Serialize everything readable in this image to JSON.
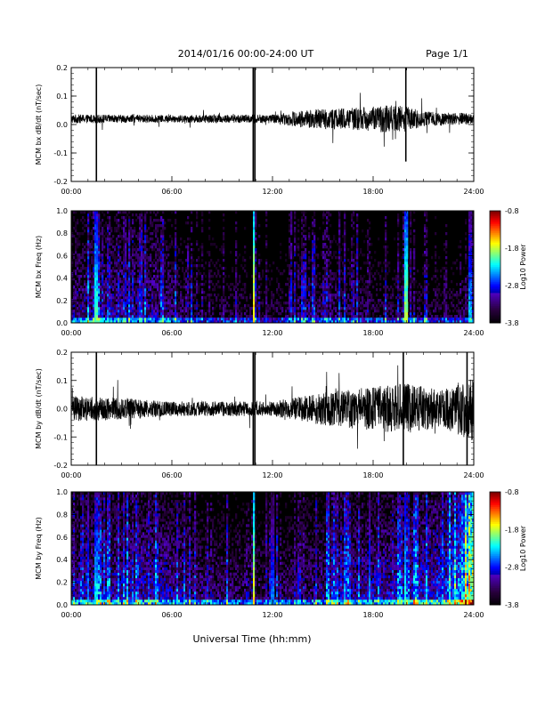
{
  "header": {
    "title": "2014/01/16  00:00-24:00 UT",
    "page_label": "Page 1/1"
  },
  "footer": {
    "xlabel": "Universal Time (hh:mm)"
  },
  "colors": {
    "trace": "#000000",
    "spectrogram_background": "#000000"
  },
  "chart_data": [
    {
      "type": "line",
      "ylabel": "MCM bx dB/dt (nT/sec)",
      "xlim": [
        0,
        24
      ],
      "ylim": [
        -0.2,
        0.2
      ],
      "xticks": [
        "00:00",
        "06:00",
        "12:00",
        "18:00",
        "24:00"
      ],
      "yticks": [
        "-0.2",
        "-0.1",
        "0.0",
        "0.1",
        "0.2"
      ],
      "spikes": [
        {
          "t": 1.5,
          "min": -0.2,
          "max": 0.2
        },
        {
          "t": 10.85,
          "min": -0.2,
          "max": 0.2
        },
        {
          "t": 10.95,
          "min": -0.2,
          "max": 0.2
        },
        {
          "t": 19.95,
          "min": -0.13,
          "max": 0.2
        }
      ],
      "noise_profile": [
        [
          0,
          0.012
        ],
        [
          6,
          0.01
        ],
        [
          12,
          0.012
        ],
        [
          14,
          0.025
        ],
        [
          17,
          0.03
        ],
        [
          19.5,
          0.04
        ],
        [
          21,
          0.02
        ],
        [
          24,
          0.015
        ]
      ],
      "offset": 0.02
    },
    {
      "type": "heatmap",
      "ylabel": "MCM bx Freq (Hz)",
      "xlim": [
        0,
        24
      ],
      "ylim": [
        0,
        1.0
      ],
      "xticks": [
        "00:00",
        "06:00",
        "12:00",
        "18:00",
        "24:00"
      ],
      "yticks": [
        "0.0",
        "0.2",
        "0.4",
        "0.6",
        "0.8",
        "1.0"
      ],
      "colorbar": {
        "label": "Log10 Power",
        "ticks": [
          "-0.8",
          "-1.8",
          "-2.8",
          "-3.8"
        ],
        "range": [
          -3.8,
          -0.8
        ]
      },
      "background_level": [
        [
          0,
          -3.2
        ],
        [
          5,
          -3.1
        ],
        [
          7,
          -3.5
        ],
        [
          12,
          -3.6
        ],
        [
          15,
          -3.4
        ],
        [
          18,
          -3.5
        ],
        [
          22,
          -3.6
        ],
        [
          24,
          -3.5
        ]
      ],
      "bursts": [
        {
          "t": 1.5,
          "level": -2.0
        },
        {
          "t": 10.9,
          "level": -1.5
        },
        {
          "t": 19.95,
          "level": -1.8
        },
        {
          "t": 23.8,
          "level": -2.3
        }
      ]
    },
    {
      "type": "line",
      "ylabel": "MCM by dB/dt (nT/sec)",
      "xlim": [
        0,
        24
      ],
      "ylim": [
        -0.2,
        0.2
      ],
      "xticks": [
        "00:00",
        "06:00",
        "12:00",
        "18:00",
        "24:00"
      ],
      "yticks": [
        "-0.2",
        "-0.1",
        "0.0",
        "0.1",
        "0.2"
      ],
      "spikes": [
        {
          "t": 1.5,
          "min": -0.2,
          "max": 0.2
        },
        {
          "t": 10.85,
          "min": -0.2,
          "max": 0.2
        },
        {
          "t": 10.95,
          "min": -0.2,
          "max": 0.2
        },
        {
          "t": 19.8,
          "min": -0.2,
          "max": 0.2
        },
        {
          "t": 23.6,
          "min": -0.2,
          "max": 0.2
        }
      ],
      "noise_profile": [
        [
          0,
          0.035
        ],
        [
          3,
          0.03
        ],
        [
          6,
          0.02
        ],
        [
          9,
          0.02
        ],
        [
          12,
          0.02
        ],
        [
          15,
          0.045
        ],
        [
          18,
          0.06
        ],
        [
          20,
          0.07
        ],
        [
          22,
          0.05
        ],
        [
          24,
          0.09
        ]
      ],
      "offset": 0.0
    },
    {
      "type": "heatmap",
      "ylabel": "MCM by Freq (Hz)",
      "xlim": [
        0,
        24
      ],
      "ylim": [
        0,
        1.0
      ],
      "xticks": [
        "00:00",
        "06:00",
        "12:00",
        "18:00",
        "24:00"
      ],
      "yticks": [
        "0.0",
        "0.2",
        "0.4",
        "0.6",
        "0.8",
        "1.0"
      ],
      "colorbar": {
        "label": "Log10 Power",
        "ticks": [
          "-0.8",
          "-1.8",
          "-2.8",
          "-3.8"
        ],
        "range": [
          -3.8,
          -0.8
        ]
      },
      "background_level": [
        [
          0,
          -3.1
        ],
        [
          5,
          -3.0
        ],
        [
          8,
          -3.3
        ],
        [
          12,
          -3.4
        ],
        [
          16,
          -3.1
        ],
        [
          20,
          -3.0
        ],
        [
          22.5,
          -2.8
        ],
        [
          24,
          -2.0
        ]
      ],
      "bursts": [
        {
          "t": 1.0,
          "level": -2.4
        },
        {
          "t": 1.5,
          "level": -2.2
        },
        {
          "t": 10.9,
          "level": -1.6
        },
        {
          "t": 12.0,
          "level": -2.5
        },
        {
          "t": 17.8,
          "level": -2.4
        },
        {
          "t": 19.9,
          "level": -2.1
        }
      ]
    }
  ]
}
